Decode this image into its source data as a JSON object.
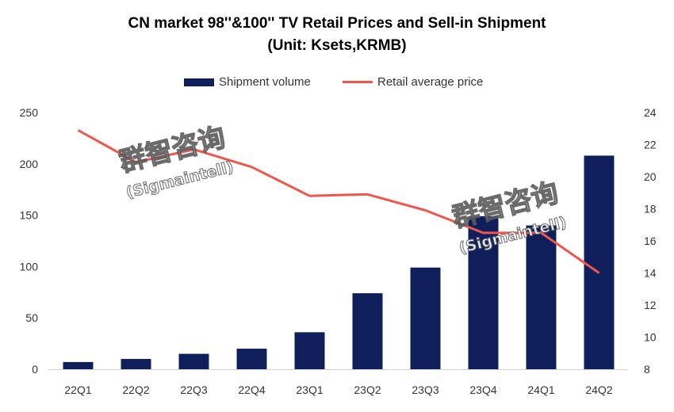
{
  "chart_data": {
    "type": "bar",
    "title_line1": "CN market 98''&100'' TV Retail Prices and Sell-in Shipment",
    "title_line2": "(Unit: Ksets,KRMB)",
    "categories": [
      "22Q1",
      "22Q2",
      "22Q3",
      "22Q4",
      "23Q1",
      "23Q2",
      "23Q3",
      "23Q4",
      "24Q1",
      "24Q2"
    ],
    "series": [
      {
        "name": "Shipment volume",
        "type": "bar",
        "axis": "left",
        "color": "#0f1f5c",
        "values": [
          7,
          10,
          15,
          20,
          36,
          74,
          99,
          149,
          140,
          208
        ]
      },
      {
        "name": "Retail average price",
        "type": "line",
        "axis": "right",
        "color": "#f0564c",
        "values": [
          22.9,
          20.9,
          21.7,
          20.6,
          18.8,
          18.9,
          17.9,
          16.5,
          16.5,
          14.0
        ]
      }
    ],
    "y_left": {
      "min": 0,
      "max": 250,
      "ticks": [
        "0",
        "50",
        "100",
        "150",
        "200",
        "250"
      ]
    },
    "y_right": {
      "min": 8,
      "max": 24,
      "ticks": [
        "8",
        "10",
        "12",
        "14",
        "16",
        "18",
        "20",
        "22",
        "24"
      ]
    },
    "grid": false,
    "legend_position": "top"
  },
  "watermark": {
    "cn": "群智咨询",
    "en": "(Sigmaintell)"
  }
}
